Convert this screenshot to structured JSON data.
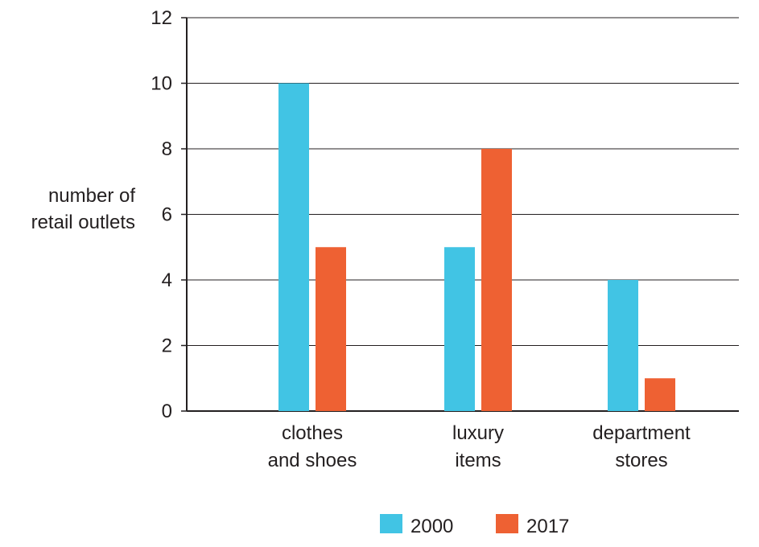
{
  "chart_data": {
    "type": "bar",
    "title": "",
    "xlabel": "",
    "ylabel_lines": [
      "number of",
      "retail outlets"
    ],
    "categories": [
      [
        "clothes",
        "and shoes"
      ],
      [
        "luxury",
        "items"
      ],
      [
        "department",
        "stores"
      ]
    ],
    "series": [
      {
        "name": "2000",
        "color": "#41c4e4",
        "values": [
          10,
          5,
          4
        ]
      },
      {
        "name": "2017",
        "color": "#ee6133",
        "values": [
          5,
          8,
          1
        ]
      }
    ],
    "ylim": [
      0,
      12
    ],
    "yticks": [
      0,
      2,
      4,
      6,
      8,
      10,
      12
    ],
    "grid": true,
    "legend_position": "bottom-center"
  }
}
